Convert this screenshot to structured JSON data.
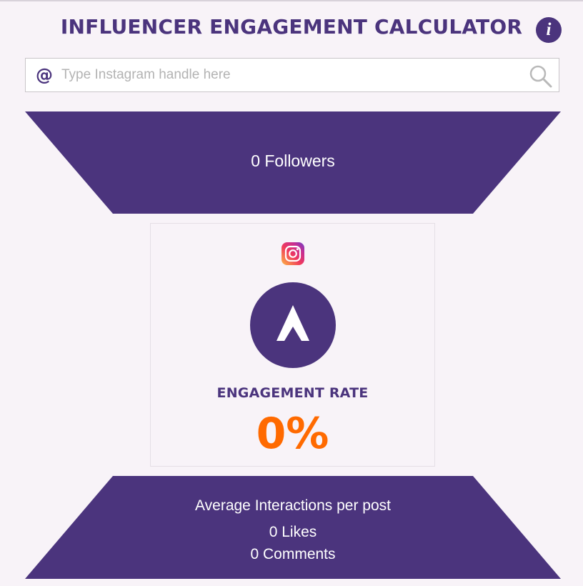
{
  "app": {
    "title": "INFLUENCER ENGAGEMENT CALCULATOR",
    "info_icon_glyph": "i"
  },
  "search": {
    "prefix": "@",
    "placeholder": "Type Instagram handle here",
    "value": ""
  },
  "followers": {
    "label": "0 Followers"
  },
  "engagement": {
    "label": "ENGAGEMENT RATE",
    "value": "0%"
  },
  "interactions": {
    "heading": "Average Interactions per post",
    "likes": "0 Likes",
    "comments": "0 Comments"
  },
  "icons": {
    "info": "info-icon",
    "search": "search-icon",
    "instagram": "instagram-icon",
    "brand_logo": "brand-logo-icon"
  },
  "colors": {
    "primary": "#4b347d",
    "accent": "#ff6a00",
    "background": "#f8f3f8"
  }
}
